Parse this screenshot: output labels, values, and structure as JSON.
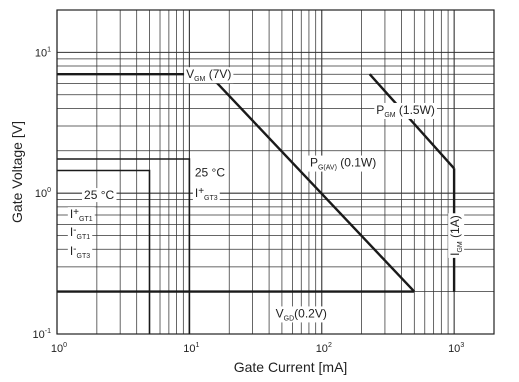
{
  "chart_data": {
    "type": "line",
    "title": "",
    "xlabel": "Gate Current [mA]",
    "ylabel": "Gate Voltage [V]",
    "x_scale": "log",
    "y_scale": "log",
    "xlim": [
      1,
      2000
    ],
    "ylim": [
      0.1,
      20
    ],
    "x_tick_labels": [
      {
        "value": 1,
        "base": "10",
        "exp": "0"
      },
      {
        "value": 10,
        "base": "10",
        "exp": "1"
      },
      {
        "value": 100,
        "base": "10",
        "exp": "2"
      },
      {
        "value": 1000,
        "base": "10",
        "exp": "3"
      }
    ],
    "y_tick_labels": [
      {
        "value": 0.1,
        "base": "10",
        "exp": "-1"
      },
      {
        "value": 1,
        "base": "10",
        "exp": "0"
      },
      {
        "value": 10,
        "base": "10",
        "exp": "1"
      }
    ],
    "grid": true,
    "series": [
      {
        "name": "VGM (7V)",
        "x": [
          1,
          14
        ],
        "y": [
          7,
          7
        ]
      },
      {
        "name": "PGM (1.5W)",
        "x": [
          230,
          1000
        ],
        "y": [
          7,
          1.5
        ]
      },
      {
        "name": "IGM (1A)",
        "x": [
          1000,
          1000
        ],
        "y": [
          1.5,
          0.2
        ]
      },
      {
        "name": "PG(AV) (0.1W)",
        "x": [
          14,
          500
        ],
        "y": [
          7,
          0.2
        ]
      },
      {
        "name": "VGD (0.2V)",
        "x": [
          1,
          500
        ],
        "y": [
          0.2,
          0.2
        ]
      },
      {
        "name": "IGT1/IGT3 box (25 °C)",
        "x": [
          1,
          5,
          5
        ],
        "y": [
          1.45,
          1.45,
          0.1
        ]
      },
      {
        "name": "IGT3 box (25 °C)",
        "x": [
          1,
          10,
          10
        ],
        "y": [
          1.75,
          1.75,
          0.1
        ]
      }
    ],
    "annotations": [
      {
        "id": "vgm",
        "main": "V",
        "sub": "GM",
        "tail": " (7V)",
        "x": 14,
        "y": 7
      },
      {
        "id": "pgm",
        "main": "P",
        "sub": "GM",
        "tail": " (1.5W)",
        "x": 430,
        "y": 3.9
      },
      {
        "id": "pgav",
        "main": "P",
        "sub": "G(AV)",
        "tail": " (0.1W)",
        "x": 145,
        "y": 1.65
      },
      {
        "id": "igm",
        "main": "I",
        "sub": "GM",
        "tail": " (1A)",
        "x": 1000,
        "y": 0.5
      },
      {
        "id": "vgd",
        "main": "V",
        "sub": "GD",
        "tail": "(0.2V)",
        "x": 70,
        "y": 0.14
      },
      {
        "id": "temp1",
        "text": "25 °C",
        "x": 1.6,
        "y": 0.97
      },
      {
        "id": "igt1p",
        "main": "I",
        "sup": "+",
        "sub": "GT1",
        "x": 1.25,
        "y": 0.71
      },
      {
        "id": "igt1m",
        "main": "I",
        "sup": "-",
        "sub": "GT1",
        "x": 1.25,
        "y": 0.53
      },
      {
        "id": "igt3m",
        "main": "I",
        "sup": "-",
        "sub": "GT3",
        "x": 1.25,
        "y": 0.39
      },
      {
        "id": "temp2",
        "text": "25 °C",
        "x": 11,
        "y": 1.4
      },
      {
        "id": "igt3p",
        "main": "I",
        "sup": "+",
        "sub": "GT3",
        "x": 11,
        "y": 1.0
      }
    ]
  }
}
